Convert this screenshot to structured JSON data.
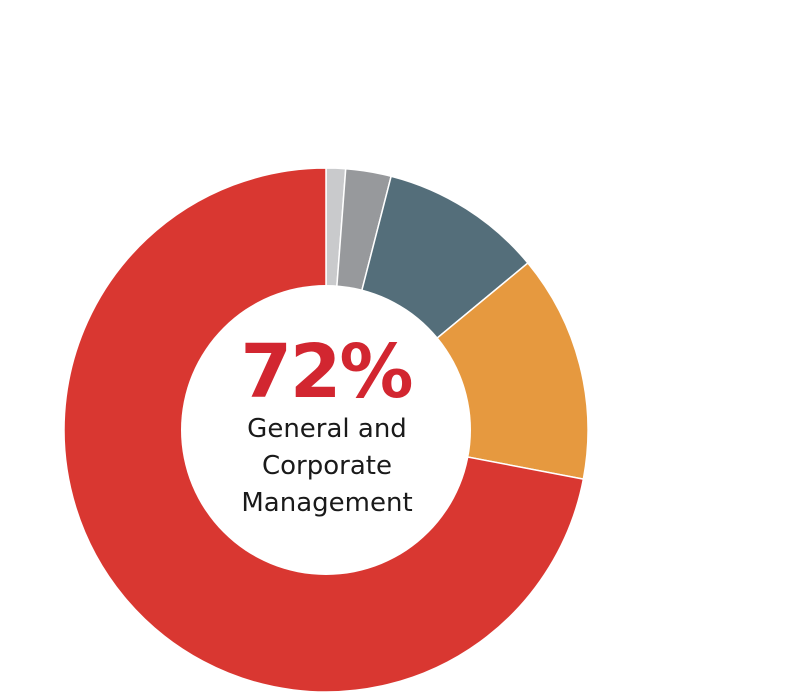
{
  "chart_data": {
    "type": "pie",
    "variant": "donut",
    "slices": [
      {
        "value": 1.2,
        "color": "#c9cacc"
      },
      {
        "value": 2.8,
        "color": "#97999c"
      },
      {
        "value": 10,
        "color": "#546e7a"
      },
      {
        "value": 14,
        "color": "#e6993f"
      },
      {
        "value": 72,
        "color": "#d93731"
      }
    ],
    "center": {
      "value": "72%",
      "label_lines": [
        "General and",
        "Corporate",
        "Management"
      ]
    },
    "start_angle": "top, clockwise",
    "legend": "none"
  }
}
